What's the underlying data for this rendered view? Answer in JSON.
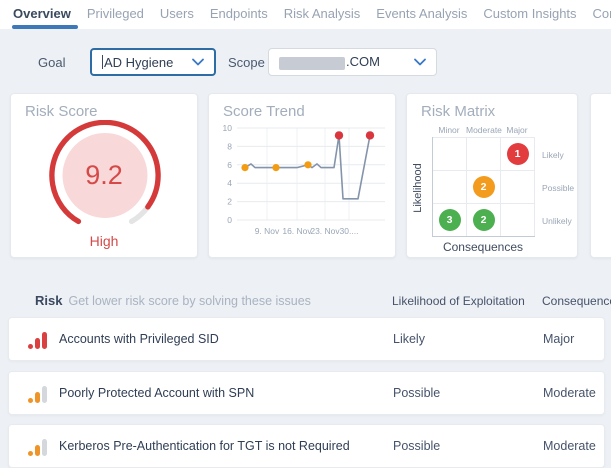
{
  "nav": {
    "tabs": [
      {
        "label": "Overview",
        "active": true
      },
      {
        "label": "Privileged",
        "active": false
      },
      {
        "label": "Users",
        "active": false
      },
      {
        "label": "Endpoints",
        "active": false
      },
      {
        "label": "Risk Analysis",
        "active": false
      },
      {
        "label": "Events Analysis",
        "active": false
      },
      {
        "label": "Custom Insights",
        "active": false
      },
      {
        "label": "Configuration",
        "active": false
      }
    ]
  },
  "filters": {
    "goal": {
      "label": "Goal",
      "value": "AD Hygiene"
    },
    "scope": {
      "label": "Scope",
      "redacted": true,
      "value_suffix": ".COM"
    }
  },
  "cards": {
    "risk_score": {
      "title": "Risk Score",
      "score": 9.2,
      "max": 10,
      "score_display": "9.2",
      "level": "High"
    },
    "score_trend": {
      "title": "Score Trend"
    },
    "risk_matrix": {
      "title": "Risk Matrix",
      "x_label": "Consequences",
      "y_label": "Likelihood",
      "columns": [
        "Minor",
        "Moderate",
        "Major"
      ],
      "rows": [
        "Likely",
        "Possible",
        "Unlikely"
      ],
      "bubbles": [
        {
          "row": 0,
          "col": 2,
          "value": 1,
          "color": "#e23c3f"
        },
        {
          "row": 1,
          "col": 1,
          "value": 2,
          "color": "#f39b1d"
        },
        {
          "row": 2,
          "col": 0,
          "value": 3,
          "color": "#4caf50"
        },
        {
          "row": 2,
          "col": 1,
          "value": 2,
          "color": "#4caf50"
        }
      ]
    }
  },
  "chart_data": [
    {
      "type": "gauge",
      "title": "Risk Score",
      "value": 9.2,
      "max": 10,
      "label": "High",
      "arc_color": "#d53a3a",
      "track_color": "#e4e4e4",
      "inner_color": "#f8d8d8"
    },
    {
      "type": "line",
      "title": "Score Trend",
      "ylim": [
        0,
        10
      ],
      "yticks": [
        0,
        2,
        4,
        6,
        8,
        10
      ],
      "xticklabels": [
        "9. Nov",
        "16. Nov",
        "23. Nov",
        "30...."
      ],
      "xtick_pos": [
        30,
        60,
        88,
        112
      ],
      "points": [
        {
          "x": 8,
          "y": 5.7,
          "marker": "orange"
        },
        {
          "x": 14,
          "y": 6.1
        },
        {
          "x": 18,
          "y": 5.7
        },
        {
          "x": 39,
          "y": 5.7,
          "marker": "orange"
        },
        {
          "x": 60,
          "y": 5.7
        },
        {
          "x": 71,
          "y": 6.0,
          "marker": "orange"
        },
        {
          "x": 75,
          "y": 5.7
        },
        {
          "x": 80,
          "y": 6.1
        },
        {
          "x": 84,
          "y": 5.7
        },
        {
          "x": 97,
          "y": 5.7
        },
        {
          "x": 102,
          "y": 9.2,
          "marker": "red"
        },
        {
          "x": 106,
          "y": 2.3
        },
        {
          "x": 121,
          "y": 2.3
        },
        {
          "x": 133,
          "y": 9.2,
          "marker": "red"
        }
      ],
      "line_color": "#8494ab",
      "marker_colors": {
        "orange": "#f39c12",
        "red": "#d9363e"
      },
      "grid": true
    },
    {
      "type": "heatmap",
      "title": "Risk Matrix",
      "xlabel": "Consequences",
      "ylabel": "Likelihood",
      "x_categories": [
        "Minor",
        "Moderate",
        "Major"
      ],
      "y_categories": [
        "Likely",
        "Possible",
        "Unlikely"
      ],
      "cells": [
        {
          "x": "Major",
          "y": "Likely",
          "value": 1,
          "color": "#e23c3f"
        },
        {
          "x": "Moderate",
          "y": "Possible",
          "value": 2,
          "color": "#f39b1d"
        },
        {
          "x": "Minor",
          "y": "Unlikely",
          "value": 3,
          "color": "#4caf50"
        },
        {
          "x": "Moderate",
          "y": "Unlikely",
          "value": 2,
          "color": "#4caf50"
        }
      ]
    }
  ],
  "table": {
    "title": "Risk",
    "subtitle": "Get lower risk score by solving these issues",
    "columns": [
      "Likelihood of Exploitation",
      "Consequences"
    ],
    "rows": [
      {
        "name": "Accounts with Privileged SID",
        "likelihood": "Likely",
        "consequence": "Major",
        "severity": "major"
      },
      {
        "name": "Poorly Protected Account with SPN",
        "likelihood": "Possible",
        "consequence": "Moderate",
        "severity": "moderate"
      },
      {
        "name": "Kerberos Pre-Authentication for TGT is not Required",
        "likelihood": "Possible",
        "consequence": "Moderate",
        "severity": "moderate"
      }
    ]
  },
  "colors": {
    "accent_blue": "#3d79b8",
    "risk_red": "#d64949",
    "warning_orange": "#ef9428",
    "safe_green": "#4caf50",
    "page_bg": "#edf0f4"
  }
}
